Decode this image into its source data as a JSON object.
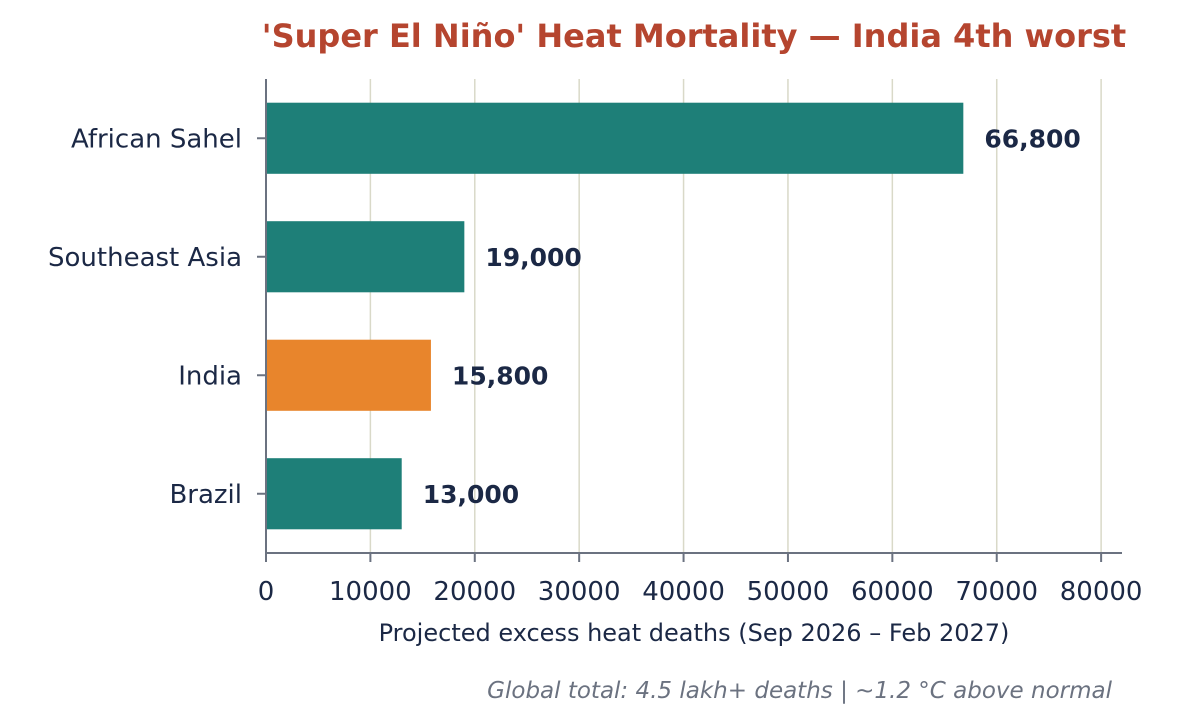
{
  "chart_data": {
    "type": "bar",
    "orientation": "horizontal",
    "title": "'Super El Niño' Heat Mortality — India 4th worst",
    "xlabel": "Projected excess heat deaths (Sep 2026 – Feb 2027)",
    "ylabel": "",
    "categories": [
      "African Sahel",
      "Southeast Asia",
      "India",
      "Brazil"
    ],
    "values": [
      66800,
      19000,
      15800,
      13000
    ],
    "value_labels": [
      "66,800",
      "19,000",
      "15,800",
      "13,000"
    ],
    "highlight": "India",
    "xlim": [
      0,
      82000
    ],
    "xticks": [
      0,
      10000,
      20000,
      30000,
      40000,
      50000,
      60000,
      70000,
      80000
    ],
    "grid": "vertical",
    "footnote": "Global total: 4.5 lakh+ deaths | ~1.2 °C above normal",
    "colors": {
      "bar": "#1e7f78",
      "highlight_bar": "#e8852c",
      "title": "#b5452f",
      "grid": "#d9d9c8",
      "axis": "#6b7280"
    }
  }
}
